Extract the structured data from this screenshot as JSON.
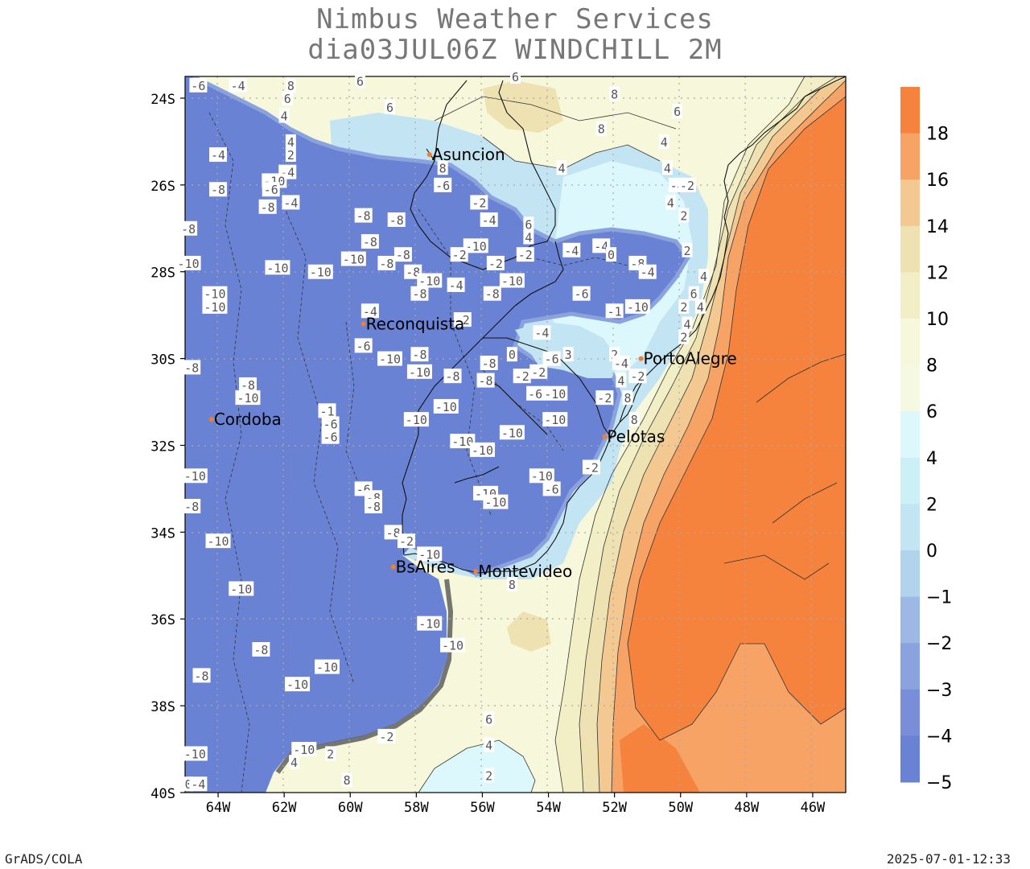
{
  "header": {
    "line1": "Nimbus Weather Services",
    "line2": "dia03JUL06Z WINDCHILL 2M"
  },
  "map": {
    "lat_labels": [
      "24S",
      "26S",
      "28S",
      "30S",
      "32S",
      "34S",
      "36S",
      "38S",
      "40S"
    ],
    "lon_labels": [
      "64W",
      "62W",
      "60W",
      "58W",
      "56W",
      "54W",
      "52W",
      "50W",
      "48W",
      "46W"
    ],
    "cities": [
      {
        "name": "Asuncion",
        "lon": -57.6,
        "lat": -25.3
      },
      {
        "name": "Reconquista",
        "lon": -59.6,
        "lat": -29.2
      },
      {
        "name": "PortoAlegre",
        "lon": -51.2,
        "lat": -30.0
      },
      {
        "name": "Cordoba",
        "lon": -64.2,
        "lat": -31.4
      },
      {
        "name": "Pelotas",
        "lon": -52.3,
        "lat": -31.8
      },
      {
        "name": "BsAires",
        "lon": -58.7,
        "lat": -34.8
      },
      {
        "name": "Montevideo",
        "lon": -56.2,
        "lat": -34.9
      }
    ],
    "contour_labels": [
      {
        "t": "-6",
        "lon": -64.6,
        "lat": -23.7
      },
      {
        "t": "-4",
        "lon": -63.4,
        "lat": -23.7
      },
      {
        "t": "8",
        "lon": -61.8,
        "lat": -23.7
      },
      {
        "t": "6",
        "lon": -61.9,
        "lat": -24.0
      },
      {
        "t": "6",
        "lon": -59.7,
        "lat": -23.6
      },
      {
        "t": "6",
        "lon": -58.8,
        "lat": -24.2
      },
      {
        "t": "6",
        "lon": -55.0,
        "lat": -23.5
      },
      {
        "t": "8",
        "lon": -52.0,
        "lat": -23.9
      },
      {
        "t": "6",
        "lon": -50.1,
        "lat": -24.3
      },
      {
        "t": "8",
        "lon": -52.4,
        "lat": -24.7
      },
      {
        "t": "4",
        "lon": -62.0,
        "lat": -24.4
      },
      {
        "t": "4",
        "lon": -50.5,
        "lat": -25.0
      },
      {
        "t": "-4",
        "lon": -64.0,
        "lat": -25.3
      },
      {
        "t": "-4",
        "lon": -61.9,
        "lat": -25.7
      },
      {
        "t": "2",
        "lon": -61.8,
        "lat": -25.3
      },
      {
        "t": "4",
        "lon": -61.8,
        "lat": -25.0
      },
      {
        "t": "8",
        "lon": -57.2,
        "lat": -25.6
      },
      {
        "t": "4",
        "lon": -53.6,
        "lat": -25.6
      },
      {
        "t": "4",
        "lon": -50.4,
        "lat": -25.6
      },
      {
        "t": "-4",
        "lon": -50.1,
        "lat": -26.0
      },
      {
        "t": "-2",
        "lon": -49.8,
        "lat": -26.0
      },
      {
        "t": "-8",
        "lon": -64.0,
        "lat": -26.1
      },
      {
        "t": "-10",
        "lon": -62.3,
        "lat": -25.9
      },
      {
        "t": "-6",
        "lon": -62.4,
        "lat": -26.1
      },
      {
        "t": "-8",
        "lon": -62.5,
        "lat": -26.5
      },
      {
        "t": "-4",
        "lon": -61.8,
        "lat": -26.4
      },
      {
        "t": "-6",
        "lon": -57.2,
        "lat": -26.0
      },
      {
        "t": "-2",
        "lon": -56.1,
        "lat": -26.4
      },
      {
        "t": "4",
        "lon": -50.3,
        "lat": -26.4
      },
      {
        "t": "2",
        "lon": -49.9,
        "lat": -26.7
      },
      {
        "t": "-8",
        "lon": -59.6,
        "lat": -26.7
      },
      {
        "t": "-8",
        "lon": -58.6,
        "lat": -26.8
      },
      {
        "t": "-4",
        "lon": -55.8,
        "lat": -26.8
      },
      {
        "t": "6",
        "lon": -54.6,
        "lat": -26.9
      },
      {
        "t": "4",
        "lon": -54.6,
        "lat": -27.2
      },
      {
        "t": "-8",
        "lon": -64.9,
        "lat": -27.0
      },
      {
        "t": "-8",
        "lon": -59.4,
        "lat": -27.3
      },
      {
        "t": "-10",
        "lon": -56.2,
        "lat": -27.4
      },
      {
        "t": "-4",
        "lon": -53.3,
        "lat": -27.5
      },
      {
        "t": "-4",
        "lon": -52.4,
        "lat": -27.4
      },
      {
        "t": "0",
        "lon": -52.1,
        "lat": -27.6
      },
      {
        "t": "2",
        "lon": -49.8,
        "lat": -27.5
      },
      {
        "t": "-10",
        "lon": -64.9,
        "lat": -27.8
      },
      {
        "t": "-10",
        "lon": -62.2,
        "lat": -27.9
      },
      {
        "t": "-10",
        "lon": -60.9,
        "lat": -28.0
      },
      {
        "t": "-10",
        "lon": -59.9,
        "lat": -27.7
      },
      {
        "t": "-8",
        "lon": -58.9,
        "lat": -27.8
      },
      {
        "t": "-8",
        "lon": -58.4,
        "lat": -27.6
      },
      {
        "t": "-2",
        "lon": -56.7,
        "lat": -27.6
      },
      {
        "t": "-2",
        "lon": -55.6,
        "lat": -27.8
      },
      {
        "t": "-2",
        "lon": -54.7,
        "lat": -27.6
      },
      {
        "t": "-8",
        "lon": -51.3,
        "lat": -27.8
      },
      {
        "t": "-4",
        "lon": -51.0,
        "lat": -28.0
      },
      {
        "t": "4",
        "lon": -49.3,
        "lat": -28.1
      },
      {
        "t": "-8",
        "lon": -58.1,
        "lat": -28.0
      },
      {
        "t": "-10",
        "lon": -57.6,
        "lat": -28.2
      },
      {
        "t": "-4",
        "lon": -56.8,
        "lat": -28.3
      },
      {
        "t": "-10",
        "lon": -55.1,
        "lat": -28.2
      },
      {
        "t": "-10",
        "lon": -64.1,
        "lat": -28.5
      },
      {
        "t": "-10",
        "lon": -64.1,
        "lat": -28.8
      },
      {
        "t": "-8",
        "lon": -57.9,
        "lat": -28.5
      },
      {
        "t": "-8",
        "lon": -55.7,
        "lat": -28.5
      },
      {
        "t": "-6",
        "lon": -53.0,
        "lat": -28.5
      },
      {
        "t": "6",
        "lon": -49.6,
        "lat": -28.5
      },
      {
        "t": "4",
        "lon": -49.4,
        "lat": -28.8
      },
      {
        "t": "-4",
        "lon": -59.4,
        "lat": -28.9
      },
      {
        "t": "-1",
        "lon": -52.0,
        "lat": -28.9
      },
      {
        "t": "-10",
        "lon": -51.3,
        "lat": -28.8
      },
      {
        "t": "2",
        "lon": -49.9,
        "lat": -28.8
      },
      {
        "t": "-2",
        "lon": -56.6,
        "lat": -29.1
      },
      {
        "t": "-4",
        "lon": -54.2,
        "lat": -29.4
      },
      {
        "t": "4",
        "lon": -49.8,
        "lat": -29.2
      },
      {
        "t": "2",
        "lon": -49.9,
        "lat": -29.5
      },
      {
        "t": "-6",
        "lon": -59.6,
        "lat": -29.7
      },
      {
        "t": "-8",
        "lon": -57.9,
        "lat": -29.9
      },
      {
        "t": "0",
        "lon": -55.1,
        "lat": -29.9
      },
      {
        "t": "2",
        "lon": -52.0,
        "lat": -29.9
      },
      {
        "t": "-8",
        "lon": -64.8,
        "lat": -30.2
      },
      {
        "t": "-10",
        "lon": -58.8,
        "lat": -30.0
      },
      {
        "t": "-8",
        "lon": -55.8,
        "lat": -30.1
      },
      {
        "t": "-6",
        "lon": -53.9,
        "lat": -30.0
      },
      {
        "t": "3",
        "lon": -53.4,
        "lat": -29.9
      },
      {
        "t": "-4",
        "lon": -51.8,
        "lat": -30.1
      },
      {
        "t": "-10",
        "lon": -57.9,
        "lat": -30.3
      },
      {
        "t": "-8",
        "lon": -56.9,
        "lat": -30.4
      },
      {
        "t": "-8",
        "lon": -55.9,
        "lat": -30.5
      },
      {
        "t": "-2",
        "lon": -54.8,
        "lat": -30.4
      },
      {
        "t": "-2",
        "lon": -54.3,
        "lat": -30.3
      },
      {
        "t": "4",
        "lon": -51.8,
        "lat": -30.5
      },
      {
        "t": "-2",
        "lon": -51.3,
        "lat": -30.4
      },
      {
        "t": "-8",
        "lon": -63.1,
        "lat": -30.6
      },
      {
        "t": "-10",
        "lon": -63.1,
        "lat": -30.9
      },
      {
        "t": "-6",
        "lon": -54.4,
        "lat": -30.8
      },
      {
        "t": "-10",
        "lon": -53.8,
        "lat": -30.8
      },
      {
        "t": "-2",
        "lon": -52.3,
        "lat": -30.9
      },
      {
        "t": "8",
        "lon": -51.6,
        "lat": -30.9
      },
      {
        "t": "-10",
        "lon": -57.1,
        "lat": -31.1
      },
      {
        "t": "-1",
        "lon": -60.7,
        "lat": -31.2
      },
      {
        "t": "-10",
        "lon": -58.0,
        "lat": -31.4
      },
      {
        "t": "-10",
        "lon": -53.8,
        "lat": -31.4
      },
      {
        "t": "8",
        "lon": -51.4,
        "lat": -31.4
      },
      {
        "t": "-6",
        "lon": -60.6,
        "lat": -31.5
      },
      {
        "t": "-6",
        "lon": -60.6,
        "lat": -31.8
      },
      {
        "t": "-10",
        "lon": -55.1,
        "lat": -31.7
      },
      {
        "t": "-10",
        "lon": -56.6,
        "lat": -31.9
      },
      {
        "t": "-10",
        "lon": -56.0,
        "lat": -32.1
      },
      {
        "t": "-10",
        "lon": -64.7,
        "lat": -32.7
      },
      {
        "t": "-10",
        "lon": -54.2,
        "lat": -32.7
      },
      {
        "t": "-2",
        "lon": -52.7,
        "lat": -32.5
      },
      {
        "t": "-6",
        "lon": -59.6,
        "lat": -33.0
      },
      {
        "t": "-8",
        "lon": -59.3,
        "lat": -33.2
      },
      {
        "t": "-10",
        "lon": -55.9,
        "lat": -33.1
      },
      {
        "t": "-10",
        "lon": -55.6,
        "lat": -33.3
      },
      {
        "t": "-6",
        "lon": -53.9,
        "lat": -33.0
      },
      {
        "t": "-8",
        "lon": -59.3,
        "lat": -33.4
      },
      {
        "t": "-8",
        "lon": -64.8,
        "lat": -33.4
      },
      {
        "t": "-8",
        "lon": -58.7,
        "lat": -34.0
      },
      {
        "t": "-2",
        "lon": -58.3,
        "lat": -34.2
      },
      {
        "t": "-10",
        "lon": -64.0,
        "lat": -34.2
      },
      {
        "t": "-10",
        "lon": -57.6,
        "lat": -34.5
      },
      {
        "t": "8",
        "lon": -55.1,
        "lat": -35.2
      },
      {
        "t": "-10",
        "lon": -63.3,
        "lat": -35.3
      },
      {
        "t": "-10",
        "lon": -57.6,
        "lat": -36.1
      },
      {
        "t": "-10",
        "lon": -56.9,
        "lat": -36.6
      },
      {
        "t": "-8",
        "lon": -62.7,
        "lat": -36.7
      },
      {
        "t": "-8",
        "lon": -64.5,
        "lat": -37.3
      },
      {
        "t": "-10",
        "lon": -60.7,
        "lat": -37.1
      },
      {
        "t": "-10",
        "lon": -61.6,
        "lat": -37.5
      },
      {
        "t": "6",
        "lon": -55.8,
        "lat": -38.3
      },
      {
        "t": "-2",
        "lon": -58.9,
        "lat": -38.7
      },
      {
        "t": "4",
        "lon": -55.8,
        "lat": -38.9
      },
      {
        "t": "-10",
        "lon": -61.4,
        "lat": -39.0
      },
      {
        "t": "2",
        "lon": -60.6,
        "lat": -39.1
      },
      {
        "t": "-10",
        "lon": -64.7,
        "lat": -39.1
      },
      {
        "t": "4",
        "lon": -61.7,
        "lat": -39.3
      },
      {
        "t": "2",
        "lon": -55.8,
        "lat": -39.6
      },
      {
        "t": "8",
        "lon": -60.1,
        "lat": -39.7
      },
      {
        "t": "0",
        "lon": -64.9,
        "lat": -39.8
      },
      {
        "t": "-4",
        "lon": -64.6,
        "lat": -39.8
      }
    ]
  },
  "colorbar": {
    "labels": [
      "18",
      "16",
      "14",
      "12",
      "10",
      "8",
      "6",
      "4",
      "2",
      "0",
      "−1",
      "−2",
      "−3",
      "−4",
      "−5"
    ],
    "colors": [
      "#f5833d",
      "#f7a366",
      "#f3c891",
      "#eee2b3",
      "#f2efc7",
      "#f7f7dc",
      "#f5f9e2",
      "#ddf8fc",
      "#cdf0f6",
      "#c3e4f2",
      "#b1d3ec",
      "#9db8e5",
      "#8aa3de",
      "#798dd8",
      "#6a82d4"
    ]
  },
  "footer": {
    "left": "GrADS/COLA",
    "right": "2025-07-01-12:33"
  },
  "colors": {
    "cold": "#6a82d4",
    "warm": "#f5833d",
    "city_dot": "#f08030"
  }
}
